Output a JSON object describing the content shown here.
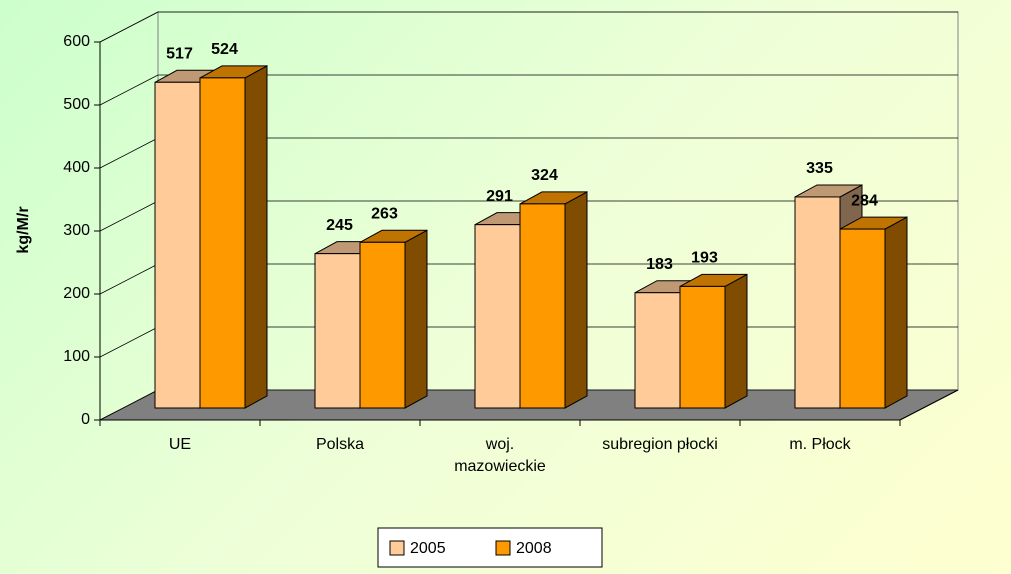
{
  "chart_data": {
    "type": "bar3d",
    "categories": [
      "UE",
      "Polska",
      "woj.\nmazowieckie",
      "subregion płocki",
      "m. Płock"
    ],
    "series": [
      {
        "name": "2005",
        "color": "#FFCC99",
        "values": [
          517,
          245,
          291,
          183,
          335
        ]
      },
      {
        "name": "2008",
        "color": "#FF9900",
        "values": [
          524,
          263,
          324,
          193,
          284
        ]
      }
    ],
    "y_label": "kg/M/r",
    "ylim": [
      0,
      600
    ],
    "yticks": [
      0,
      100,
      200,
      300,
      400,
      500,
      600
    ],
    "grid": true,
    "legend": "bottom"
  }
}
